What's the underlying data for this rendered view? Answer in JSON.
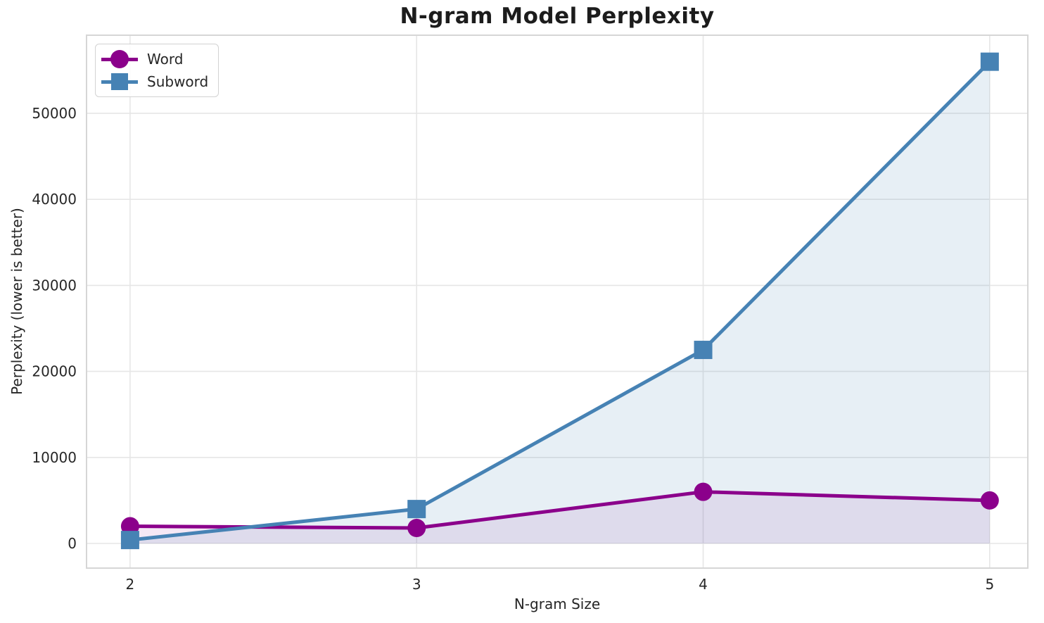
{
  "chart_data": {
    "type": "line",
    "title": "N-gram Model Perplexity",
    "xlabel": "N-gram Size",
    "ylabel": "Perplexity (lower is better)",
    "x": [
      2,
      3,
      4,
      5
    ],
    "series": [
      {
        "name": "Word",
        "marker": "circle",
        "color": "#8B008B",
        "fill_alpha": 0.09,
        "values": [
          2000,
          1800,
          6000,
          5000
        ]
      },
      {
        "name": "Subword",
        "marker": "square",
        "color": "#4682B4",
        "fill_alpha": 0.13,
        "values": [
          400,
          4000,
          22500,
          56000
        ]
      }
    ],
    "x_tick_labels": [
      "2",
      "3",
      "4",
      "5"
    ],
    "y_ticks": [
      0,
      10000,
      20000,
      30000,
      40000,
      50000
    ],
    "y_tick_labels": [
      "0",
      "10000",
      "20000",
      "30000",
      "40000",
      "50000"
    ],
    "xlim": [
      1.848,
      5.133
    ],
    "ylim": [
      -2864,
      59082
    ],
    "grid": true,
    "legend_position": "upper left",
    "area_fill_to_zero": true
  },
  "style_colors": {
    "grid": "#e6e6e6",
    "frame": "#d6d6d6",
    "tick_text": "#262626",
    "title_text": "#1c1c1c"
  }
}
